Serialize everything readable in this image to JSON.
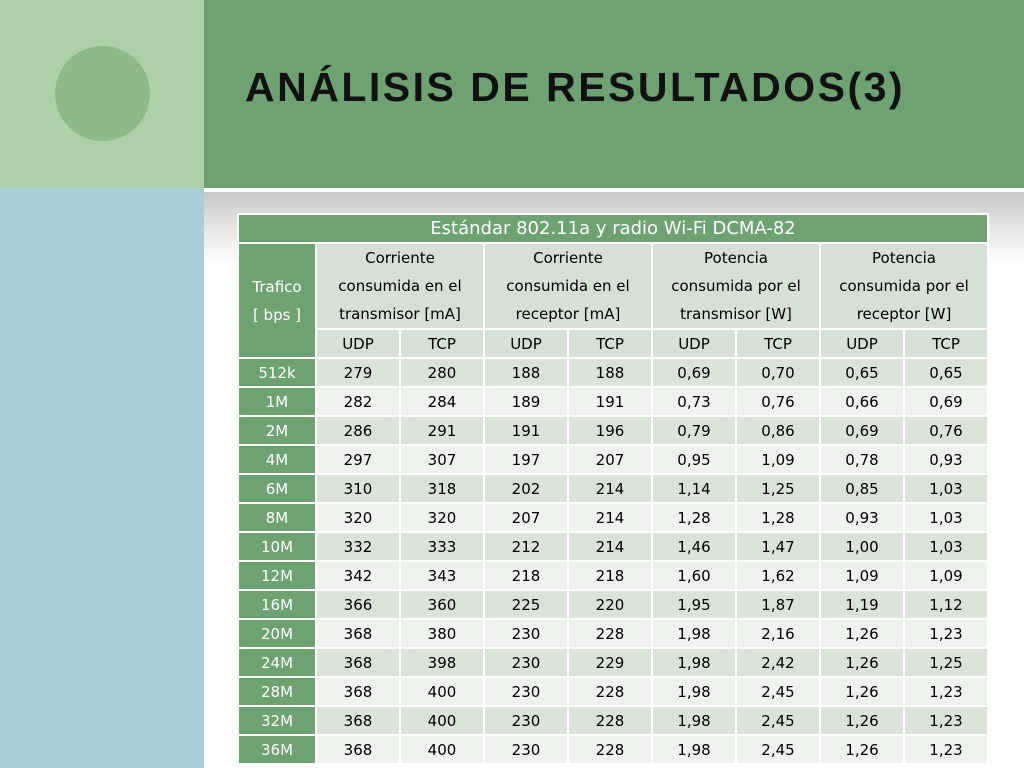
{
  "title": "ANÁLISIS DE RESULTADOS(3)",
  "table": {
    "caption": "Estándar 802.11a y radio Wi-Fi DCMA-82",
    "row_header": {
      "line1": "Trafico",
      "line2": "[ bps ]"
    },
    "groups": [
      {
        "line1": "Corriente",
        "line2": "consumida en el",
        "line3": "transmisor [mA]"
      },
      {
        "line1": "Corriente",
        "line2": "consumida en el",
        "line3": "receptor [mA]"
      },
      {
        "line1": "Potencia",
        "line2": "consumida por el",
        "line3": "transmisor [W]"
      },
      {
        "line1": "Potencia",
        "line2": "consumida por el",
        "line3": "receptor [W]"
      }
    ],
    "subheaders": [
      "UDP",
      "TCP",
      "UDP",
      "TCP",
      "UDP",
      "TCP",
      "UDP",
      "TCP"
    ],
    "rows": [
      {
        "label": "512k",
        "values": [
          "279",
          "280",
          "188",
          "188",
          "0,69",
          "0,70",
          "0,65",
          "0,65"
        ]
      },
      {
        "label": "1M",
        "values": [
          "282",
          "284",
          "189",
          "191",
          "0,73",
          "0,76",
          "0,66",
          "0,69"
        ]
      },
      {
        "label": "2M",
        "values": [
          "286",
          "291",
          "191",
          "196",
          "0,79",
          "0,86",
          "0,69",
          "0,76"
        ]
      },
      {
        "label": "4M",
        "values": [
          "297",
          "307",
          "197",
          "207",
          "0,95",
          "1,09",
          "0,78",
          "0,93"
        ]
      },
      {
        "label": "6M",
        "values": [
          "310",
          "318",
          "202",
          "214",
          "1,14",
          "1,25",
          "0,85",
          "1,03"
        ]
      },
      {
        "label": "8M",
        "values": [
          "320",
          "320",
          "207",
          "214",
          "1,28",
          "1,28",
          "0,93",
          "1,03"
        ]
      },
      {
        "label": "10M",
        "values": [
          "332",
          "333",
          "212",
          "214",
          "1,46",
          "1,47",
          "1,00",
          "1,03"
        ]
      },
      {
        "label": "12M",
        "values": [
          "342",
          "343",
          "218",
          "218",
          "1,60",
          "1,62",
          "1,09",
          "1,09"
        ]
      },
      {
        "label": "16M",
        "values": [
          "366",
          "360",
          "225",
          "220",
          "1,95",
          "1,87",
          "1,19",
          "1,12"
        ]
      },
      {
        "label": "20M",
        "values": [
          "368",
          "380",
          "230",
          "228",
          "1,98",
          "2,16",
          "1,26",
          "1,23"
        ]
      },
      {
        "label": "24M",
        "values": [
          "368",
          "398",
          "230",
          "229",
          "1,98",
          "2,42",
          "1,26",
          "1,25"
        ]
      },
      {
        "label": "28M",
        "values": [
          "368",
          "400",
          "230",
          "228",
          "1,98",
          "2,45",
          "1,26",
          "1,23"
        ]
      },
      {
        "label": "32M",
        "values": [
          "368",
          "400",
          "230",
          "228",
          "1,98",
          "2,45",
          "1,26",
          "1,23"
        ]
      },
      {
        "label": "36M",
        "values": [
          "368",
          "400",
          "230",
          "228",
          "1,98",
          "2,45",
          "1,26",
          "1,23"
        ]
      }
    ]
  }
}
